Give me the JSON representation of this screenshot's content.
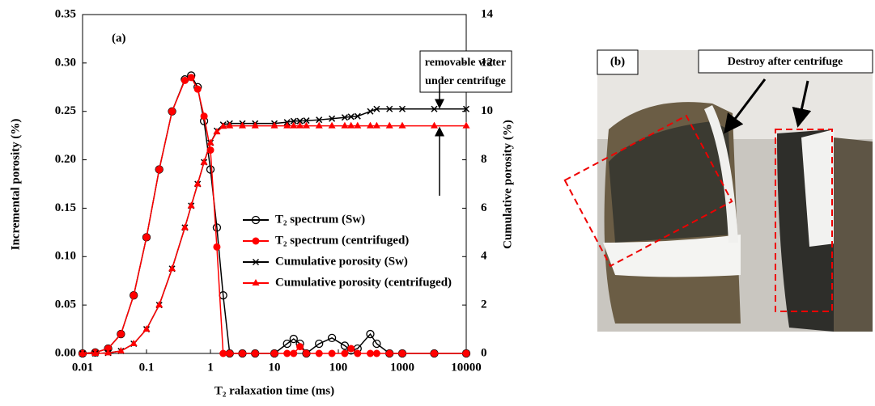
{
  "chart_data": {
    "type": "line",
    "panel_label": "(a)",
    "xlabel": "T₂ ralaxation time (ms)",
    "ylabel": "Incremental porosity (%)",
    "y2label": "Cumulative porosity (%)",
    "annotation": [
      "removable water",
      "under centrifuge"
    ],
    "xscale": "log",
    "xlim": [
      0.01,
      10000
    ],
    "xticks": [
      0.01,
      0.1,
      1,
      10,
      100,
      1000,
      10000
    ],
    "ylim": [
      0,
      0.35
    ],
    "yticks": [
      {
        "value": 0,
        "label": "0.00"
      },
      {
        "value": 0.05,
        "label": "0.05"
      },
      {
        "value": 0.1,
        "label": "0.10"
      },
      {
        "value": 0.15,
        "label": "0.15"
      },
      {
        "value": 0.2,
        "label": "0.20"
      },
      {
        "value": 0.25,
        "label": "0.25"
      },
      {
        "value": 0.3,
        "label": "0.30"
      },
      {
        "value": 0.35,
        "label": "0.35"
      }
    ],
    "y2lim": [
      0,
      14
    ],
    "y2ticks": [
      0,
      2,
      4,
      6,
      8,
      10,
      12,
      14
    ],
    "x": [
      0.01,
      0.0158,
      0.0251,
      0.0398,
      0.0631,
      0.1,
      0.158,
      0.251,
      0.398,
      0.5,
      0.631,
      0.794,
      1,
      1.26,
      1.58,
      2,
      3.16,
      5,
      10,
      15.8,
      20,
      25.1,
      31.6,
      50,
      79.4,
      126,
      158,
      200,
      316,
      398,
      631,
      1000,
      3162,
      10000
    ],
    "series": [
      {
        "name": "T₂ spectrum (Sw)",
        "color": "#000000",
        "marker": "open-circle",
        "values": [
          0,
          0.001,
          0.005,
          0.02,
          0.06,
          0.12,
          0.19,
          0.25,
          0.283,
          0.287,
          0.275,
          0.24,
          0.19,
          0.13,
          0.06,
          0,
          0,
          0,
          0,
          0.01,
          0.015,
          0.01,
          0,
          0.01,
          0.016,
          0.008,
          0.003,
          0.005,
          0.02,
          0.01,
          0,
          0,
          0,
          0
        ]
      },
      {
        "name": "T₂ spectrum (centrifuged)",
        "color": "#ff0000",
        "marker": "filled-circle",
        "values": [
          0,
          0.001,
          0.005,
          0.02,
          0.06,
          0.12,
          0.19,
          0.25,
          0.282,
          0.285,
          0.273,
          0.245,
          0.21,
          0.11,
          0,
          0,
          0,
          0,
          0,
          0,
          0,
          0.007,
          0,
          0,
          0,
          0,
          0.005,
          0,
          0,
          0,
          0,
          0,
          0,
          0
        ]
      },
      {
        "name": "Cumulative porosity (Sw)",
        "color": "#000000",
        "marker": "cross",
        "axis": "y2",
        "values": [
          0,
          0,
          0.02,
          0.1,
          0.4,
          1.0,
          2.0,
          3.5,
          5.2,
          6.1,
          7.0,
          7.9,
          8.7,
          9.2,
          9.45,
          9.5,
          9.5,
          9.5,
          9.5,
          9.55,
          9.6,
          9.6,
          9.62,
          9.65,
          9.7,
          9.75,
          9.78,
          9.8,
          10.0,
          10.1,
          10.1,
          10.1,
          10.1,
          10.1
        ]
      },
      {
        "name": "Cumulative porosity (centrifuged)",
        "color": "#ff0000",
        "marker": "triangle",
        "axis": "y2",
        "values": [
          0,
          0,
          0.02,
          0.1,
          0.4,
          1.0,
          2.0,
          3.5,
          5.2,
          6.1,
          7.0,
          7.9,
          8.7,
          9.15,
          9.38,
          9.4,
          9.4,
          9.4,
          9.4,
          9.4,
          9.4,
          9.4,
          9.4,
          9.4,
          9.4,
          9.4,
          9.4,
          9.4,
          9.4,
          9.4,
          9.4,
          9.4,
          9.4,
          9.4
        ]
      }
    ]
  },
  "panel_b": {
    "label": "(b)",
    "caption": "Destroy after centrifuge"
  }
}
